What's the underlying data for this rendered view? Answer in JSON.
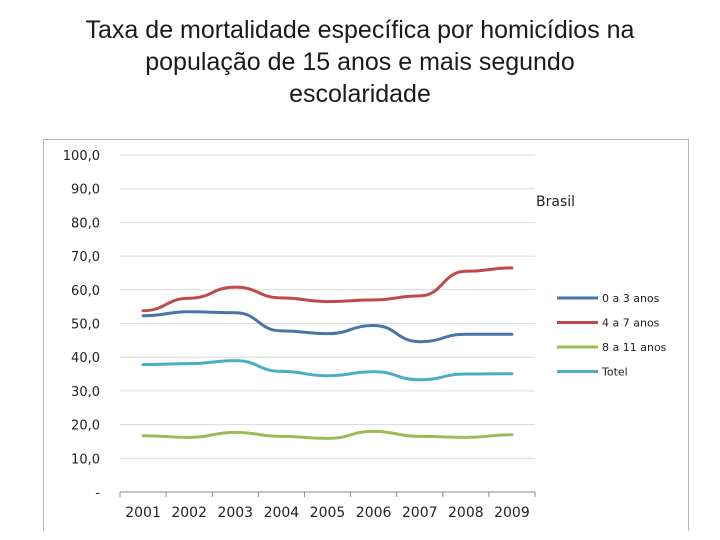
{
  "page": {
    "title_line1": "Taxa de mortalidade específica por homicídios na",
    "title_line2": "população de 15 anos e mais segundo",
    "title_line3": "escolaridade"
  },
  "chart_data": {
    "type": "line",
    "title": "Taxa de mortalidade específica por homicídios na população de 15 anos e mais segundo escolaridade",
    "annotation": "Brasil",
    "categories": [
      "2001",
      "2002",
      "2003",
      "2004",
      "2005",
      "2006",
      "2007",
      "2008",
      "2009"
    ],
    "y_tick_labels": [
      "-",
      "10,0",
      "20,0",
      "30,0",
      "40,0",
      "50,0",
      "60,0",
      "70,0",
      "80,0",
      "90,0",
      "100,0"
    ],
    "ylim": [
      0,
      100
    ],
    "grid": true,
    "legend_position": "right",
    "series": [
      {
        "name": "0 a 3 anos",
        "color": "#4a74a8",
        "values": [
          52.3,
          53.5,
          53.2,
          47.8,
          47.0,
          49.4,
          44.6,
          46.8,
          46.8
        ]
      },
      {
        "name": "4 a 7 anos",
        "color": "#bf4b48",
        "values": [
          53.8,
          57.5,
          60.8,
          57.6,
          56.5,
          57.0,
          58.2,
          65.5,
          66.5
        ]
      },
      {
        "name": "8 a 11 anos",
        "color": "#9bbb59",
        "values": [
          16.7,
          16.2,
          17.7,
          16.5,
          15.9,
          18.0,
          16.5,
          16.2,
          17.0
        ]
      },
      {
        "name": "Totel",
        "color": "#4aaec6",
        "values": [
          37.8,
          38.1,
          39.0,
          35.8,
          34.5,
          35.7,
          33.3,
          35.0,
          35.1
        ]
      }
    ]
  }
}
